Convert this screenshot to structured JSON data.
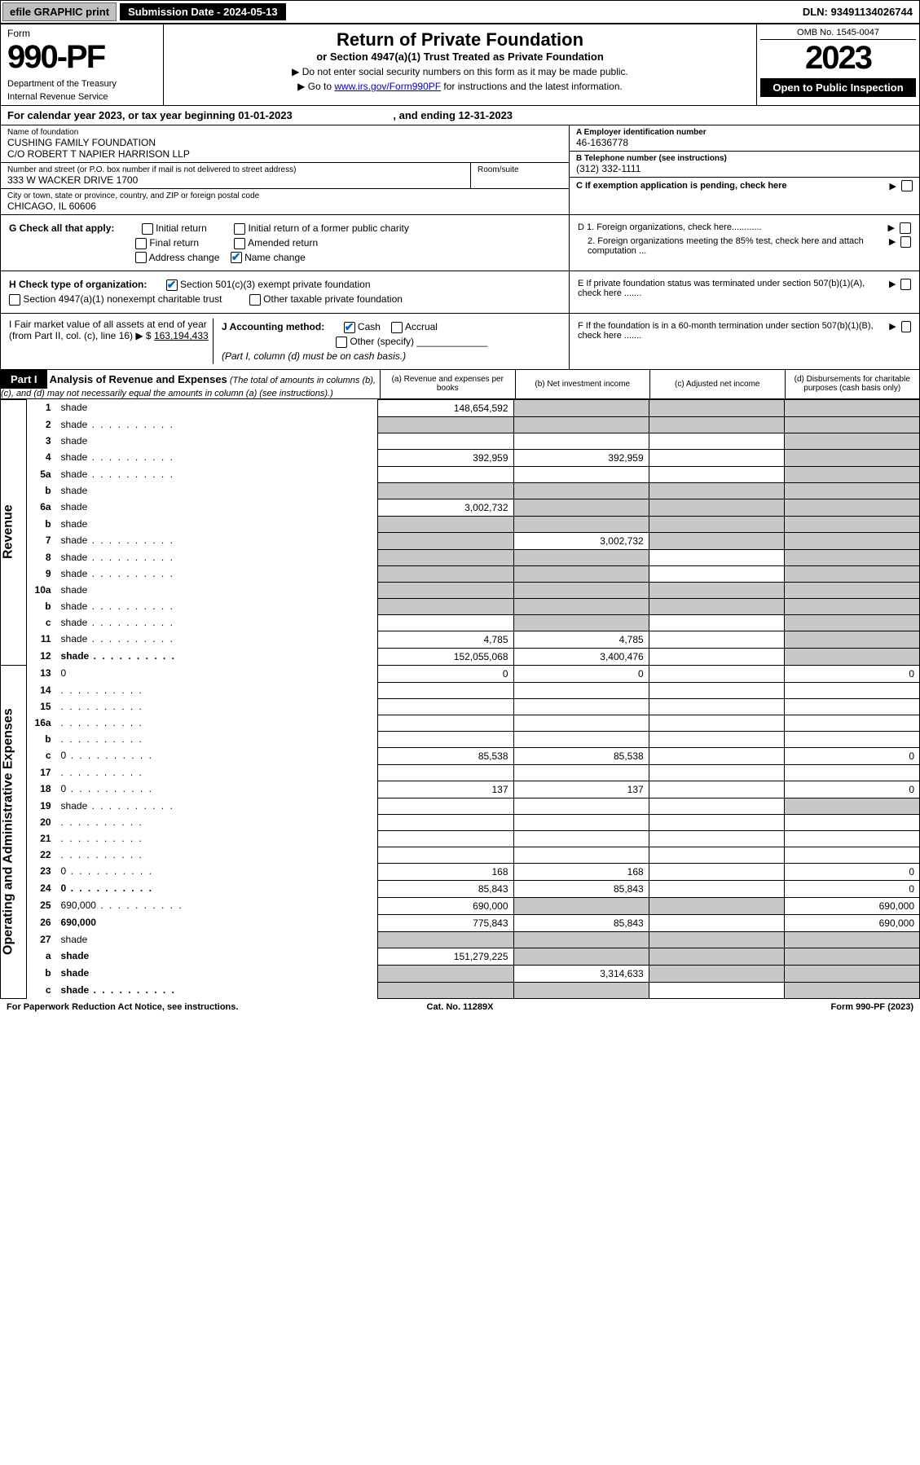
{
  "topbar": {
    "efile": "efile GRAPHIC print",
    "subdate_label": "Submission Date - 2024-05-13",
    "dln": "DLN: 93491134026744"
  },
  "header": {
    "form_word": "Form",
    "form_number": "990-PF",
    "dept": "Department of the Treasury",
    "irs": "Internal Revenue Service",
    "title": "Return of Private Foundation",
    "subtitle": "or Section 4947(a)(1) Trust Treated as Private Foundation",
    "note1": "▶ Do not enter social security numbers on this form as it may be made public.",
    "note2_pre": "▶ Go to ",
    "note2_link": "www.irs.gov/Form990PF",
    "note2_post": " for instructions and the latest information.",
    "omb": "OMB No. 1545-0047",
    "year": "2023",
    "open": "Open to Public Inspection"
  },
  "calyear": {
    "pre": "For calendar year 2023, or tax year beginning ",
    "begin": "01-01-2023",
    "mid": " , and ending ",
    "end": "12-31-2023"
  },
  "id": {
    "name_lbl": "Name of foundation",
    "name1": "CUSHING FAMILY FOUNDATION",
    "name2": "C/O ROBERT T NAPIER HARRISON LLP",
    "addr_lbl": "Number and street (or P.O. box number if mail is not delivered to street address)",
    "addr": "333 W WACKER DRIVE 1700",
    "room_lbl": "Room/suite",
    "city_lbl": "City or town, state or province, country, and ZIP or foreign postal code",
    "city": "CHICAGO, IL  60606",
    "a_lbl": "A Employer identification number",
    "ein": "46-1636778",
    "b_lbl": "B Telephone number (see instructions)",
    "phone": "(312) 332-1111",
    "c_lbl": "C If exemption application is pending, check here"
  },
  "checks": {
    "g_lbl": "G Check all that apply:",
    "g1": "Initial return",
    "g2": "Initial return of a former public charity",
    "g3": "Final return",
    "g4": "Amended return",
    "g5": "Address change",
    "g6": "Name change",
    "h_lbl": "H Check type of organization:",
    "h1": "Section 501(c)(3) exempt private foundation",
    "h2": "Section 4947(a)(1) nonexempt charitable trust",
    "h3": "Other taxable private foundation",
    "i_lbl": "I Fair market value of all assets at end of year (from Part II, col. (c), line 16) ▶ $",
    "i_val": "163,194,433",
    "j_lbl": "J Accounting method:",
    "j1": "Cash",
    "j2": "Accrual",
    "j3": "Other (specify)",
    "j_note": "(Part I, column (d) must be on cash basis.)",
    "d1": "D 1. Foreign organizations, check here............",
    "d2": "2. Foreign organizations meeting the 85% test, check here and attach computation ...",
    "e": "E  If private foundation status was terminated under section 507(b)(1)(A), check here .......",
    "f": "F  If the foundation is in a 60-month termination under section 507(b)(1)(B), check here .......",
    "arrow": "▶"
  },
  "part1": {
    "label": "Part I",
    "title": "Analysis of Revenue and Expenses",
    "desc": "(The total of amounts in columns (b), (c), and (d) may not necessarily equal the amounts in column (a) (see instructions).)",
    "col_a": "(a)   Revenue and expenses per books",
    "col_b": "(b)   Net investment income",
    "col_c": "(c)   Adjusted net income",
    "col_d": "(d)   Disbursements for charitable purposes (cash basis only)"
  },
  "sidelabels": {
    "revenue": "Revenue",
    "expenses": "Operating and Administrative Expenses"
  },
  "rows": [
    {
      "n": "1",
      "d": "shade",
      "a": "148,654,592",
      "b": "shade",
      "c": "shade"
    },
    {
      "n": "2",
      "d": "shade",
      "dots": true,
      "a": "shade",
      "b": "shade",
      "c": "shade"
    },
    {
      "n": "3",
      "d": "shade",
      "a": "",
      "b": "",
      "c": ""
    },
    {
      "n": "4",
      "d": "shade",
      "dots": true,
      "a": "392,959",
      "b": "392,959",
      "c": ""
    },
    {
      "n": "5a",
      "d": "shade",
      "dots": true,
      "a": "",
      "b": "",
      "c": ""
    },
    {
      "n": "b",
      "d": "shade",
      "a": "shade",
      "b": "shade",
      "c": "shade"
    },
    {
      "n": "6a",
      "d": "shade",
      "a": "3,002,732",
      "b": "shade",
      "c": "shade"
    },
    {
      "n": "b",
      "d": "shade",
      "a": "shade",
      "b": "shade",
      "c": "shade"
    },
    {
      "n": "7",
      "d": "shade",
      "dots": true,
      "a": "shade",
      "b": "3,002,732",
      "c": "shade"
    },
    {
      "n": "8",
      "d": "shade",
      "dots": true,
      "a": "shade",
      "b": "shade",
      "c": ""
    },
    {
      "n": "9",
      "d": "shade",
      "dots": true,
      "a": "shade",
      "b": "shade",
      "c": ""
    },
    {
      "n": "10a",
      "d": "shade",
      "a": "shade",
      "b": "shade",
      "c": "shade"
    },
    {
      "n": "b",
      "d": "shade",
      "dots": true,
      "a": "shade",
      "b": "shade",
      "c": "shade"
    },
    {
      "n": "c",
      "d": "shade",
      "dots": true,
      "a": "",
      "b": "shade",
      "c": ""
    },
    {
      "n": "11",
      "d": "shade",
      "dots": true,
      "a": "4,785",
      "b": "4,785",
      "c": ""
    },
    {
      "n": "12",
      "d": "shade",
      "dots": true,
      "bold": true,
      "a": "152,055,068",
      "b": "3,400,476",
      "c": ""
    },
    {
      "n": "13",
      "d": "0",
      "a": "0",
      "b": "0",
      "c": ""
    },
    {
      "n": "14",
      "d": "",
      "dots": true,
      "a": "",
      "b": "",
      "c": ""
    },
    {
      "n": "15",
      "d": "",
      "dots": true,
      "a": "",
      "b": "",
      "c": ""
    },
    {
      "n": "16a",
      "d": "",
      "dots": true,
      "a": "",
      "b": "",
      "c": ""
    },
    {
      "n": "b",
      "d": "",
      "dots": true,
      "a": "",
      "b": "",
      "c": ""
    },
    {
      "n": "c",
      "d": "0",
      "dots": true,
      "a": "85,538",
      "b": "85,538",
      "c": ""
    },
    {
      "n": "17",
      "d": "",
      "dots": true,
      "a": "",
      "b": "",
      "c": ""
    },
    {
      "n": "18",
      "d": "0",
      "dots": true,
      "a": "137",
      "b": "137",
      "c": ""
    },
    {
      "n": "19",
      "d": "shade",
      "dots": true,
      "a": "",
      "b": "",
      "c": ""
    },
    {
      "n": "20",
      "d": "",
      "dots": true,
      "a": "",
      "b": "",
      "c": ""
    },
    {
      "n": "21",
      "d": "",
      "dots": true,
      "a": "",
      "b": "",
      "c": ""
    },
    {
      "n": "22",
      "d": "",
      "dots": true,
      "a": "",
      "b": "",
      "c": ""
    },
    {
      "n": "23",
      "d": "0",
      "dots": true,
      "a": "168",
      "b": "168",
      "c": ""
    },
    {
      "n": "24",
      "d": "0",
      "dots": true,
      "bold": true,
      "a": "85,843",
      "b": "85,843",
      "c": ""
    },
    {
      "n": "25",
      "d": "690,000",
      "dots": true,
      "a": "690,000",
      "b": "shade",
      "c": "shade"
    },
    {
      "n": "26",
      "d": "690,000",
      "bold": true,
      "a": "775,843",
      "b": "85,843",
      "c": ""
    },
    {
      "n": "27",
      "d": "shade",
      "a": "shade",
      "b": "shade",
      "c": "shade"
    },
    {
      "n": "a",
      "d": "shade",
      "bold": true,
      "a": "151,279,225",
      "b": "shade",
      "c": "shade"
    },
    {
      "n": "b",
      "d": "shade",
      "bold": true,
      "a": "shade",
      "b": "3,314,633",
      "c": "shade"
    },
    {
      "n": "c",
      "d": "shade",
      "bold": true,
      "dots": true,
      "a": "shade",
      "b": "shade",
      "c": ""
    }
  ],
  "footer": {
    "left": "For Paperwork Reduction Act Notice, see instructions.",
    "center": "Cat. No. 11289X",
    "right": "Form 990-PF (2023)"
  }
}
